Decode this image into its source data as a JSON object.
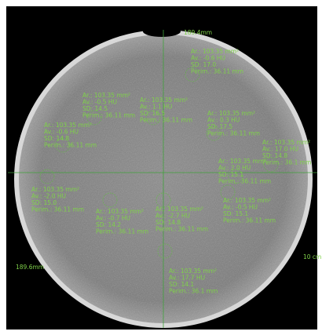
{
  "scale_labels": {
    "top": "189.4mm",
    "left": "189.6mm",
    "right": "10 cm"
  },
  "rois": [
    {
      "lines": [
        "Ar.: 103.35 mm²",
        "Av.: -0.6 HU",
        "SD: 17.0",
        "Perim.: 36.11 mm"
      ]
    },
    {
      "lines": [
        "Ar.: 103.35 mm²",
        "Av.: -0.5 HU",
        "SD: 14.5",
        "Perim.: 36.11 mm"
      ]
    },
    {
      "lines": [
        "Ar.: 103.35 mm²",
        "Av.: 1.1 HU",
        "SD: 16.5",
        "Perim.: 36.11 mm"
      ]
    },
    {
      "lines": [
        "Ar.: 103.35 mm²",
        "Av.: 0.3 HU",
        "SD: 17.5",
        "Perim.: 36.11 mm"
      ]
    },
    {
      "lines": [
        "Ar.: 103.35 mm²",
        "Av.: -0.6 HU",
        "SD: 14.8",
        "Perim.: 36.11 mm"
      ]
    },
    {
      "lines": [
        "Ar.: 103.35 mm²",
        "Av.: 17.0 HU",
        "SD: 14.8",
        "Perim.: 36.1 mm"
      ]
    },
    {
      "lines": [
        "Ar.: 103.35 mm²",
        "Av.: 2.0 HU",
        "SD: 15.1",
        "Perim.: 36.11 mm"
      ]
    },
    {
      "lines": [
        "Ar.: 103.35 mm²",
        "Av.: -2.0 HU",
        "SD: 15.0",
        "Perim.: 36.11 mm"
      ]
    },
    {
      "lines": [
        "Ar.: 103.35 mm²",
        "Av.: -0.7 HU",
        "SD: 14.2",
        "Perim.: 36.11 mm"
      ]
    },
    {
      "lines": [
        "Ar.: 103.35 mm²",
        "Av.: -2.7 HU",
        "SD: 14.8",
        "Perim.: 36.11 mm"
      ]
    },
    {
      "lines": [
        "Ar.: 103.35 mm²",
        "Av.: -0.5 HU",
        "SD: 15.1",
        "Perim.: 36.11 mm"
      ]
    },
    {
      "lines": [
        "Ar.: 103.35 mm²",
        "Av.: 17.7 HU",
        "SD: 14.1",
        "Perim.: 36.1 mm"
      ]
    }
  ]
}
